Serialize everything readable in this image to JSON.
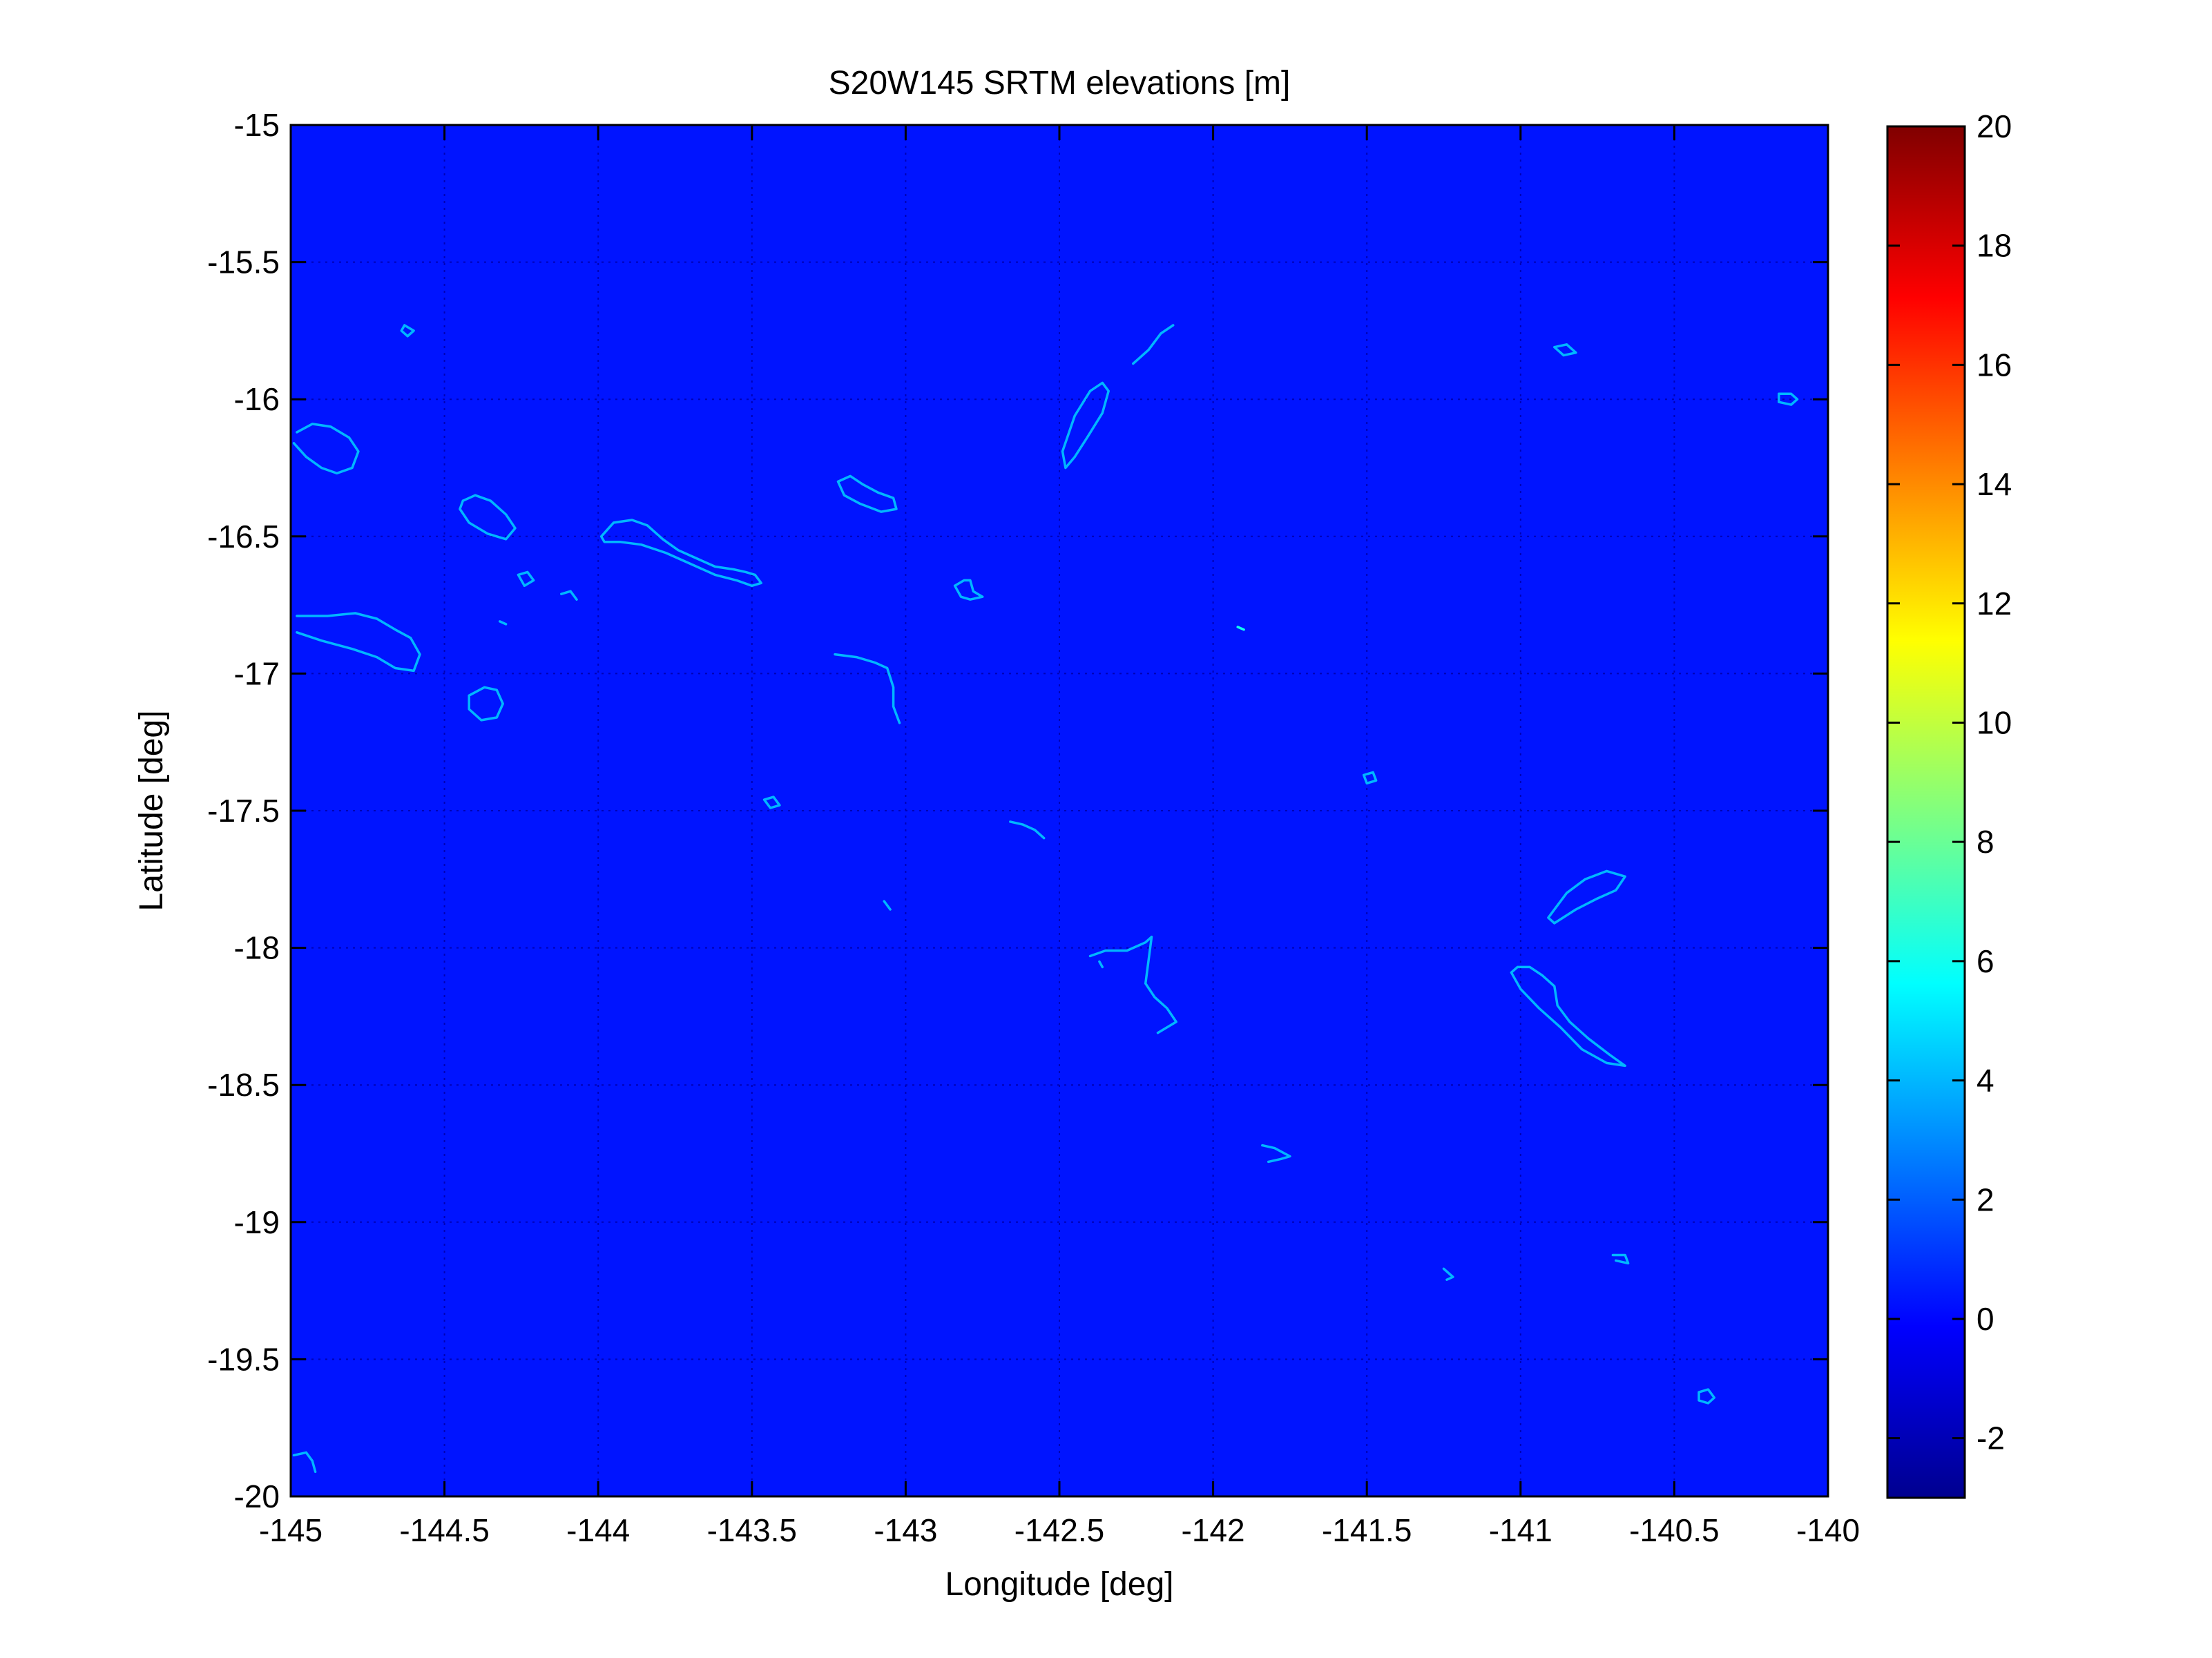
{
  "chart_data": {
    "type": "heatmap",
    "title": "S20W145 SRTM elevations [m]",
    "xlabel": "Longitude [deg]",
    "ylabel": "Latitude [deg]",
    "xlim": [
      -145,
      -140
    ],
    "ylim": [
      -20,
      -15
    ],
    "grid": true,
    "background_value": 0,
    "x_ticks": [
      "-145",
      "-144.5",
      "-144",
      "-143.5",
      "-143",
      "-142.5",
      "-142",
      "-141.5",
      "-141",
      "-140.5",
      "-140"
    ],
    "y_ticks": [
      "-15",
      "-15.5",
      "-16",
      "-16.5",
      "-17",
      "-17.5",
      "-18",
      "-18.5",
      "-19",
      "-19.5",
      "-20"
    ],
    "colorbar": {
      "colormap": "jet",
      "range": [
        -3,
        20
      ],
      "ticks": [
        "20",
        "18",
        "16",
        "14",
        "12",
        "10",
        "8",
        "6",
        "4",
        "2",
        "0",
        "-2"
      ]
    },
    "features": [
      {
        "name": "island-1",
        "lon": [
          -144.98,
          -144.93,
          -144.87,
          -144.81,
          -144.78,
          -144.8,
          -144.85,
          -144.9,
          -144.95,
          -144.99
        ],
        "lat": [
          -16.12,
          -16.09,
          -16.1,
          -16.14,
          -16.19,
          -16.25,
          -16.27,
          -16.25,
          -16.21,
          -16.16
        ],
        "value": 4
      },
      {
        "name": "island-2",
        "lon": [
          -144.63,
          -144.6,
          -144.62,
          -144.64,
          -144.63
        ],
        "lat": [
          -15.73,
          -15.75,
          -15.77,
          -15.75,
          -15.73
        ],
        "value": 4
      },
      {
        "name": "island-3",
        "lon": [
          -144.44,
          -144.4,
          -144.35,
          -144.3,
          -144.27,
          -144.3,
          -144.36,
          -144.42,
          -144.45,
          -144.44
        ],
        "lat": [
          -16.37,
          -16.35,
          -16.37,
          -16.42,
          -16.47,
          -16.51,
          -16.49,
          -16.45,
          -16.4,
          -16.37
        ],
        "value": 4
      },
      {
        "name": "island-4",
        "lon": [
          -144.26,
          -144.23,
          -144.21,
          -144.24,
          -144.26
        ],
        "lat": [
          -16.64,
          -16.63,
          -16.66,
          -16.68,
          -16.64
        ],
        "value": 4
      },
      {
        "name": "island-5",
        "lon": [
          -144.12,
          -144.09,
          -144.07
        ],
        "lat": [
          -16.71,
          -16.7,
          -16.73
        ],
        "value": 4
      },
      {
        "name": "island-6",
        "lon": [
          -144.32,
          -144.3
        ],
        "lat": [
          -16.81,
          -16.82
        ],
        "value": 4
      },
      {
        "name": "island-7",
        "lon": [
          -143.99,
          -143.95,
          -143.89,
          -143.84,
          -143.79,
          -143.74,
          -143.68,
          -143.62,
          -143.56,
          -143.52,
          -143.49,
          -143.47,
          -143.5,
          -143.55,
          -143.62,
          -143.7,
          -143.78,
          -143.86,
          -143.93,
          -143.98,
          -143.99
        ],
        "lat": [
          -16.5,
          -16.45,
          -16.44,
          -16.46,
          -16.51,
          -16.55,
          -16.58,
          -16.61,
          -16.62,
          -16.63,
          -16.64,
          -16.67,
          -16.68,
          -16.66,
          -16.64,
          -16.6,
          -16.56,
          -16.53,
          -16.52,
          -16.52,
          -16.5
        ],
        "value": 4
      },
      {
        "name": "island-8",
        "lon": [
          -144.98,
          -144.88,
          -144.79,
          -144.72,
          -144.66,
          -144.61,
          -144.58,
          -144.6,
          -144.66,
          -144.72,
          -144.8,
          -144.9,
          -144.98
        ],
        "lat": [
          -16.79,
          -16.79,
          -16.78,
          -16.8,
          -16.84,
          -16.87,
          -16.93,
          -16.99,
          -16.98,
          -16.94,
          -16.91,
          -16.88,
          -16.85
        ],
        "value": 4
      },
      {
        "name": "island-9",
        "lon": [
          -144.42,
          -144.37,
          -144.33,
          -144.31,
          -144.33,
          -144.38,
          -144.42,
          -144.42
        ],
        "lat": [
          -17.08,
          -17.05,
          -17.06,
          -17.11,
          -17.16,
          -17.17,
          -17.13,
          -17.08
        ],
        "value": 4
      },
      {
        "name": "island-10",
        "lon": [
          -143.22,
          -143.18,
          -143.14,
          -143.09,
          -143.04,
          -143.03,
          -143.08,
          -143.15,
          -143.2,
          -143.22
        ],
        "lat": [
          -16.3,
          -16.28,
          -16.31,
          -16.34,
          -16.36,
          -16.4,
          -16.41,
          -16.38,
          -16.35,
          -16.3
        ],
        "value": 4
      },
      {
        "name": "island-11",
        "lon": [
          -142.84,
          -142.81,
          -142.79,
          -142.78,
          -142.75,
          -142.79,
          -142.82,
          -142.84
        ],
        "lat": [
          -16.68,
          -16.66,
          -16.66,
          -16.7,
          -16.72,
          -16.73,
          -16.72,
          -16.68
        ],
        "value": 4
      },
      {
        "name": "island-12",
        "lon": [
          -143.23,
          -143.16,
          -143.1,
          -143.06,
          -143.04,
          -143.04,
          -143.02
        ],
        "lat": [
          -16.93,
          -16.94,
          -16.96,
          -16.98,
          -17.05,
          -17.12,
          -17.18
        ],
        "value": 4
      },
      {
        "name": "island-13",
        "lon": [
          -143.46,
          -143.43,
          -143.41,
          -143.44,
          -143.46
        ],
        "lat": [
          -17.46,
          -17.45,
          -17.48,
          -17.49,
          -17.46
        ],
        "value": 4
      },
      {
        "name": "island-14",
        "lon": [
          -143.07,
          -143.05
        ],
        "lat": [
          -17.83,
          -17.86
        ],
        "value": 4
      },
      {
        "name": "island-15",
        "lon": [
          -142.49,
          -142.45,
          -142.4,
          -142.36,
          -142.34,
          -142.36,
          -142.41,
          -142.45,
          -142.48,
          -142.49
        ],
        "lat": [
          -16.19,
          -16.06,
          -15.97,
          -15.94,
          -15.97,
          -16.05,
          -16.14,
          -16.21,
          -16.25,
          -16.19
        ],
        "value": 4
      },
      {
        "name": "island-16",
        "lon": [
          -142.26,
          -142.21,
          -142.17,
          -142.13
        ],
        "lat": [
          -15.87,
          -15.82,
          -15.76,
          -15.73
        ],
        "value": 4
      },
      {
        "name": "island-17",
        "lon": [
          -142.66,
          -142.62,
          -142.58,
          -142.55
        ],
        "lat": [
          -17.54,
          -17.55,
          -17.57,
          -17.6
        ],
        "value": 4
      },
      {
        "name": "island-18",
        "lon": [
          -142.4,
          -142.35,
          -142.28,
          -142.22,
          -142.2,
          -142.22,
          -142.19,
          -142.15,
          -142.12,
          -142.18
        ],
        "lat": [
          -18.03,
          -18.01,
          -18.01,
          -17.98,
          -17.96,
          -18.13,
          -18.18,
          -18.22,
          -18.27,
          -18.31
        ],
        "value": 4
      },
      {
        "name": "island-19",
        "lon": [
          -142.37,
          -142.36
        ],
        "lat": [
          -18.05,
          -18.07
        ],
        "value": 4
      },
      {
        "name": "island-20",
        "lon": [
          -141.92,
          -141.9
        ],
        "lat": [
          -16.83,
          -16.84
        ],
        "value": 6
      },
      {
        "name": "island-21",
        "lon": [
          -141.51,
          -141.48,
          -141.47,
          -141.5,
          -141.51
        ],
        "lat": [
          -17.37,
          -17.36,
          -17.39,
          -17.4,
          -17.37
        ],
        "value": 4
      },
      {
        "name": "island-22",
        "lon": [
          -141.84,
          -141.8,
          -141.75,
          -141.78,
          -141.82
        ],
        "lat": [
          -18.72,
          -18.73,
          -18.76,
          -18.77,
          -18.78
        ],
        "value": 4
      },
      {
        "name": "island-23",
        "lon": [
          -141.25,
          -141.22,
          -141.24
        ],
        "lat": [
          -19.17,
          -19.2,
          -19.21
        ],
        "value": 4
      },
      {
        "name": "island-24",
        "lon": [
          -140.89,
          -140.85,
          -140.82,
          -140.86,
          -140.89
        ],
        "lat": [
          -15.81,
          -15.8,
          -15.83,
          -15.84,
          -15.81
        ],
        "value": 4
      },
      {
        "name": "island-25",
        "lon": [
          -140.16,
          -140.12,
          -140.1,
          -140.12,
          -140.16,
          -140.16
        ],
        "lat": [
          -15.98,
          -15.98,
          -16.0,
          -16.02,
          -16.01,
          -15.98
        ],
        "value": 4
      },
      {
        "name": "island-26",
        "lon": [
          -140.91,
          -140.85,
          -140.79,
          -140.72,
          -140.66,
          -140.69,
          -140.75,
          -140.82,
          -140.89,
          -140.91
        ],
        "lat": [
          -17.89,
          -17.8,
          -17.75,
          -17.72,
          -17.74,
          -17.79,
          -17.82,
          -17.86,
          -17.91,
          -17.89
        ],
        "value": 4
      },
      {
        "name": "island-27",
        "lon": [
          -141.03,
          -141.01,
          -140.97,
          -140.93,
          -140.89,
          -140.88,
          -140.84,
          -140.78,
          -140.71,
          -140.66,
          -140.72,
          -140.8,
          -140.87,
          -140.94,
          -141.0,
          -141.03
        ],
        "lat": [
          -18.09,
          -18.07,
          -18.07,
          -18.1,
          -18.14,
          -18.21,
          -18.27,
          -18.33,
          -18.39,
          -18.43,
          -18.42,
          -18.37,
          -18.29,
          -18.22,
          -18.15,
          -18.09
        ],
        "value": 4
      },
      {
        "name": "island-28",
        "lon": [
          -140.7,
          -140.66,
          -140.65,
          -140.69
        ],
        "lat": [
          -19.12,
          -19.12,
          -19.15,
          -19.14
        ],
        "value": 4
      },
      {
        "name": "island-29",
        "lon": [
          -140.42,
          -140.39,
          -140.37,
          -140.39,
          -140.42,
          -140.42
        ],
        "lat": [
          -19.62,
          -19.61,
          -19.64,
          -19.66,
          -19.65,
          -19.62
        ],
        "value": 4
      },
      {
        "name": "island-30",
        "lon": [
          -144.99,
          -144.95,
          -144.93,
          -144.92
        ],
        "lat": [
          -19.85,
          -19.84,
          -19.87,
          -19.91
        ],
        "value": 4
      }
    ]
  }
}
